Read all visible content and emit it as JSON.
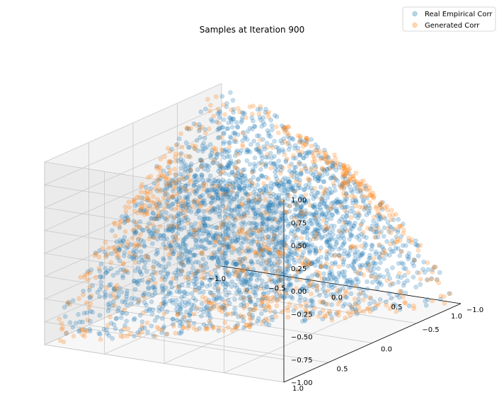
{
  "chart_data": {
    "type": "scatter",
    "projection": "3d",
    "title": "Samples at Iteration 900",
    "xlabel": "",
    "ylabel": "",
    "zlabel": "",
    "xlim": [
      -1.0,
      1.0
    ],
    "ylim": [
      -1.0,
      1.0
    ],
    "zlim": [
      -1.0,
      1.0
    ],
    "x_ticks": [
      "−1.0",
      "−0.5",
      "0.0",
      "0.5",
      "1.0"
    ],
    "y_ticks": [
      "−1.0",
      "−0.5",
      "0.0",
      "0.5",
      "1.0"
    ],
    "z_ticks": [
      "−1.00",
      "−0.75",
      "−0.50",
      "−0.25",
      "0.00",
      "0.25",
      "0.50",
      "0.75",
      "1.00"
    ],
    "grid": true,
    "legend_position": "top-right",
    "series": [
      {
        "name": "Real Empirical Corr",
        "color": "#1f77b4",
        "alpha": 0.25,
        "description_region": "interior of elliptope of 3x3 correlation matrices",
        "points": [
          [
            0.9,
            0.9,
            0.9
          ],
          [
            0.0,
            0.0,
            0.0
          ],
          [
            -0.8,
            0.2,
            -0.2
          ],
          [
            0.3,
            -0.7,
            -0.4
          ],
          [
            0.5,
            0.5,
            0.6
          ],
          [
            -0.3,
            0.6,
            -0.1
          ],
          [
            0.6,
            -0.2,
            0.1
          ],
          [
            -0.5,
            -0.3,
            0.5
          ],
          [
            0.1,
            0.4,
            0.3
          ],
          [
            0.4,
            0.1,
            -0.5
          ]
        ]
      },
      {
        "name": "Generated Corr",
        "color": "#ff7f0e",
        "alpha": 0.25,
        "description_region": "boundary of elliptope",
        "points": [
          [
            0.95,
            0.95,
            0.95
          ],
          [
            0.8,
            -0.6,
            -0.3
          ],
          [
            -0.85,
            0.4,
            -0.6
          ],
          [
            0.6,
            0.9,
            0.7
          ],
          [
            -0.5,
            -0.6,
            0.9
          ],
          [
            0.2,
            -0.9,
            -0.5
          ]
        ]
      }
    ]
  }
}
